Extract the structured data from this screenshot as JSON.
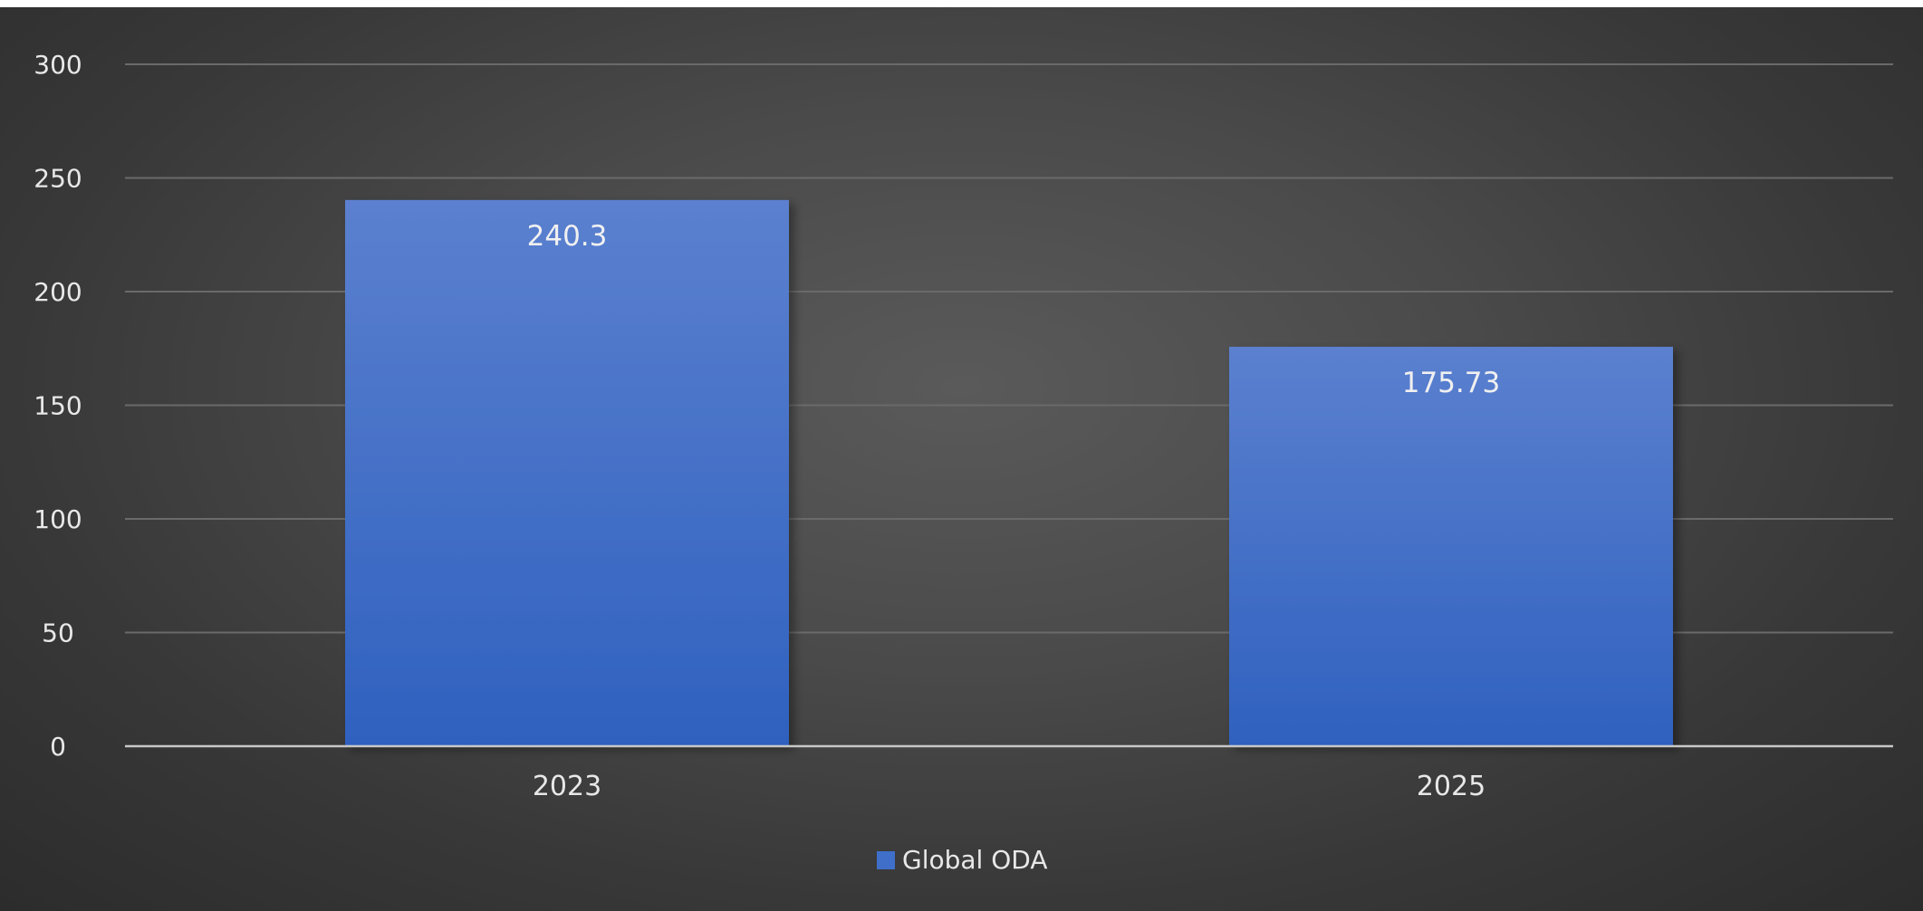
{
  "chart_data": {
    "type": "bar",
    "title": "",
    "xlabel": "",
    "ylabel": "",
    "categories": [
      "2023",
      "2025"
    ],
    "series": [
      {
        "name": "Global ODA",
        "values": [
          240.3,
          175.73
        ],
        "data_labels": [
          "240.3",
          "175.73"
        ]
      }
    ],
    "ylim": [
      0,
      300
    ],
    "yticks": [
      0,
      50,
      100,
      150,
      200,
      250,
      300
    ],
    "ytick_labels": [
      "0",
      "50",
      "100",
      "150",
      "200",
      "250",
      "300"
    ],
    "grid": true,
    "legend_position": "bottom",
    "colors": {
      "bar_top": "#5b80cf",
      "bar_bottom": "#2f61bf",
      "gridline": "#6a6a6a",
      "axis_line": "#c8c8c8",
      "text": "#e8e8e8",
      "legend_swatch": "#3f6fc8"
    }
  }
}
